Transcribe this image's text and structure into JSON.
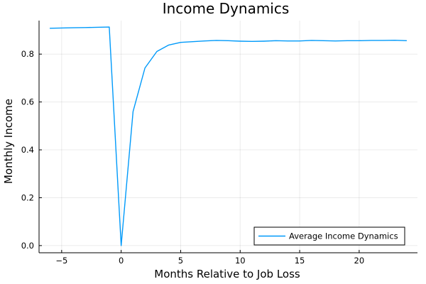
{
  "chart_data": {
    "type": "line",
    "title": "Income Dynamics",
    "xlabel": "Months Relative to Job Loss",
    "ylabel": "Monthly Income",
    "xlim": [
      -6.9,
      24.9
    ],
    "ylim": [
      -0.03,
      0.94
    ],
    "xticks": [
      -5,
      0,
      5,
      10,
      15,
      20
    ],
    "yticks": [
      0.0,
      0.2,
      0.4,
      0.6,
      0.8
    ],
    "ytick_labels": [
      "0.0",
      "0.2",
      "0.4",
      "0.6",
      "0.8"
    ],
    "grid": true,
    "legend_position": "bottom-right",
    "series": [
      {
        "name": "Average Income Dynamics",
        "color": "#009AFA",
        "x": [
          -6,
          -5,
          -4,
          -3,
          -2,
          -1,
          0,
          1,
          2,
          3,
          4,
          5,
          6,
          7,
          8,
          9,
          10,
          11,
          12,
          13,
          14,
          15,
          16,
          17,
          18,
          19,
          20,
          21,
          22,
          23,
          24
        ],
        "y": [
          0.908,
          0.909,
          0.91,
          0.911,
          0.912,
          0.913,
          0.0,
          0.56,
          0.742,
          0.811,
          0.838,
          0.849,
          0.852,
          0.855,
          0.857,
          0.856,
          0.854,
          0.853,
          0.854,
          0.856,
          0.855,
          0.855,
          0.857,
          0.856,
          0.855,
          0.856,
          0.856,
          0.857,
          0.857,
          0.858,
          0.856
        ]
      }
    ]
  }
}
